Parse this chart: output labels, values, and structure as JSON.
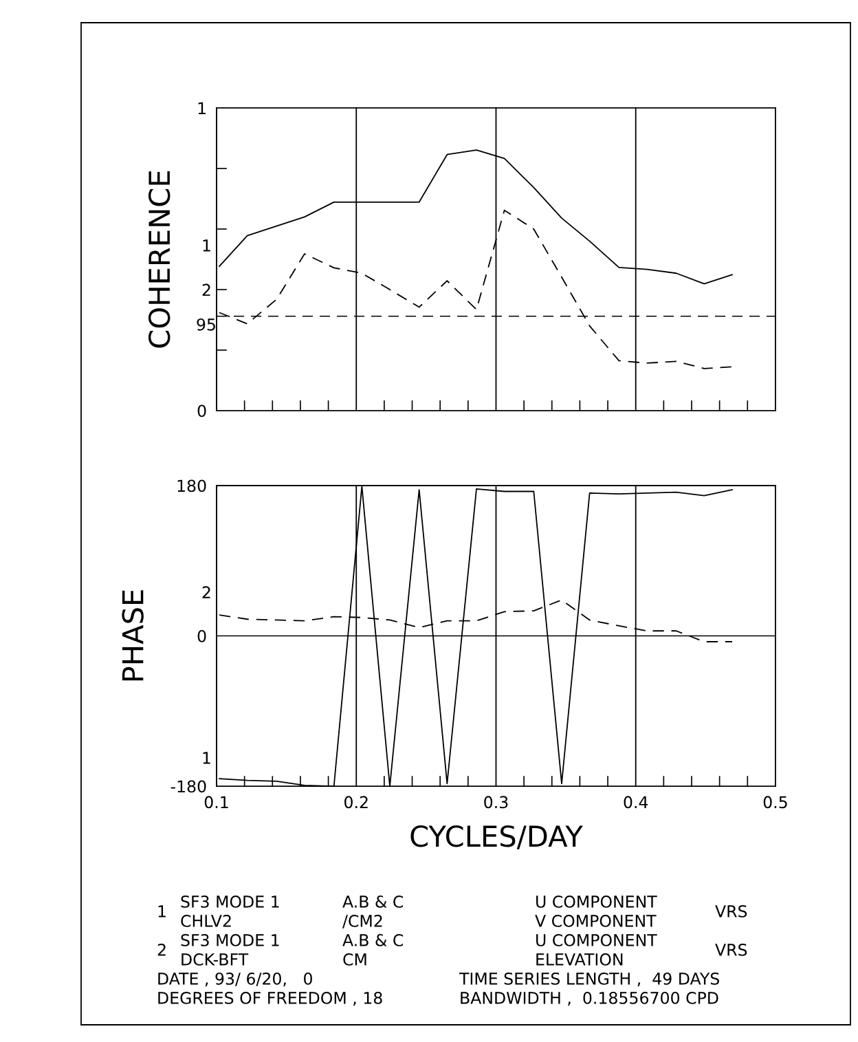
{
  "chart_data": [
    {
      "type": "line",
      "ylabel": "COHERENCE",
      "x": [
        0.102,
        0.122,
        0.143,
        0.163,
        0.184,
        0.204,
        0.224,
        0.245,
        0.265,
        0.286,
        0.306,
        0.327,
        0.347,
        0.367,
        0.388,
        0.408,
        0.429,
        0.449,
        0.469
      ],
      "xlim": [
        0.1,
        0.5
      ],
      "ylim": [
        0,
        1
      ],
      "xticks": [
        0.1,
        {
          "value": 0.12,
          "label": null
        },
        {
          "value": 0.14,
          "label": null
        },
        {
          "value": 0.16,
          "label": null
        },
        {
          "value": 0.18,
          "label": null
        },
        0.2,
        {
          "value": 0.22,
          "label": null
        },
        {
          "value": 0.24,
          "label": null
        },
        {
          "value": 0.26,
          "label": null
        },
        {
          "value": 0.28,
          "label": null
        },
        0.3,
        {
          "value": 0.32,
          "label": null
        },
        {
          "value": 0.34,
          "label": null
        },
        {
          "value": 0.36,
          "label": null
        },
        {
          "value": 0.38,
          "label": null
        },
        0.4,
        {
          "value": 0.42,
          "label": null
        },
        {
          "value": 0.44,
          "label": null
        },
        {
          "value": 0.46,
          "label": null
        },
        {
          "value": 0.48,
          "label": null
        },
        0.5
      ],
      "yticks": [
        0,
        {
          "value": 0.2,
          "label": null
        },
        {
          "value": 0.4,
          "label": null
        },
        {
          "value": 0.6,
          "label": null
        },
        {
          "value": 0.8,
          "label": null
        },
        1
      ],
      "tick_labels": "y",
      "grid": "x",
      "ref_lines": [
        {
          "axis": "y",
          "value": 0.312,
          "line_style": "dashed",
          "color": "#000000"
        }
      ],
      "annotations": [
        {
          "text": "95",
          "x": 0.1,
          "y": 0.312
        }
      ],
      "legend": "left",
      "series": [
        {
          "name": "1",
          "color": "#000000",
          "line_style": "solid",
          "values": [
            0.477,
            0.578,
            0.61,
            0.64,
            0.689,
            0.689,
            0.689,
            0.689,
            0.846,
            0.861,
            0.833,
            0.737,
            0.636,
            0.56,
            0.473,
            0.467,
            0.454,
            0.419,
            0.449
          ]
        },
        {
          "name": "2",
          "color": "#000000",
          "line_style": "dashed",
          "values": [
            0.324,
            0.287,
            0.368,
            0.518,
            0.472,
            0.454,
            0.4,
            0.342,
            0.429,
            0.334,
            0.662,
            0.6,
            0.441,
            0.28,
            0.165,
            0.157,
            0.163,
            0.139,
            0.145
          ]
        }
      ]
    },
    {
      "type": "line",
      "ylabel": "PHASE",
      "xlabel": "CYCLES/DAY",
      "x": [
        0.102,
        0.122,
        0.143,
        0.163,
        0.184,
        0.204,
        0.224,
        0.245,
        0.265,
        0.286,
        0.306,
        0.327,
        0.347,
        0.367,
        0.388,
        0.408,
        0.429,
        0.449,
        0.469
      ],
      "xlim": [
        0.1,
        0.5
      ],
      "ylim": [
        -180,
        180
      ],
      "xticks": [
        0.1,
        {
          "value": 0.12,
          "label": null
        },
        {
          "value": 0.14,
          "label": null
        },
        {
          "value": 0.16,
          "label": null
        },
        {
          "value": 0.18,
          "label": null
        },
        0.2,
        {
          "value": 0.22,
          "label": null
        },
        {
          "value": 0.24,
          "label": null
        },
        {
          "value": 0.26,
          "label": null
        },
        {
          "value": 0.28,
          "label": null
        },
        0.3,
        {
          "value": 0.32,
          "label": null
        },
        {
          "value": 0.34,
          "label": null
        },
        {
          "value": 0.36,
          "label": null
        },
        {
          "value": 0.38,
          "label": null
        },
        0.4,
        {
          "value": 0.42,
          "label": null
        },
        {
          "value": 0.44,
          "label": null
        },
        {
          "value": 0.46,
          "label": null
        },
        {
          "value": 0.48,
          "label": null
        },
        0.5
      ],
      "yticks": [
        -180,
        0,
        180
      ],
      "grid": "x",
      "ref_lines": [
        {
          "axis": "y",
          "value": 0,
          "color": "#000000",
          "line_style": "solid"
        }
      ],
      "legend": "left",
      "series": [
        {
          "name": "1",
          "color": "#000000",
          "line_style": "solid",
          "values": [
            -171,
            -173,
            -174,
            -179,
            -180,
            179,
            -180,
            175,
            -177,
            176,
            173,
            173,
            -177,
            171,
            170,
            171,
            172,
            168,
            175
          ]
        },
        {
          "name": "2",
          "color": "#000000",
          "line_style": "dashed",
          "values": [
            25,
            20,
            19,
            18,
            23,
            22,
            19,
            10,
            18,
            18,
            29,
            30,
            43,
            19,
            12,
            6,
            6,
            -7,
            -7
          ]
        }
      ],
      "annotations": [
        "1",
        "SF3 MODE 1",
        "CHLV2",
        "A.B & C",
        "/CM2",
        "U COMPONENT",
        "V COMPONENT",
        "VRS",
        "2",
        "SF3 MODE 1",
        "DCK-BFT",
        "A.B & C",
        "CM",
        "U COMPONENT",
        "ELEVATION",
        "VRS",
        "DATE , 93/ 6/20,   0",
        "TIME SERIES LENGTH ,  49 DAYS",
        "DEGREES OF FREEDOM , 18",
        "BANDWIDTH ,  0.18556700 CPD"
      ]
    }
  ]
}
